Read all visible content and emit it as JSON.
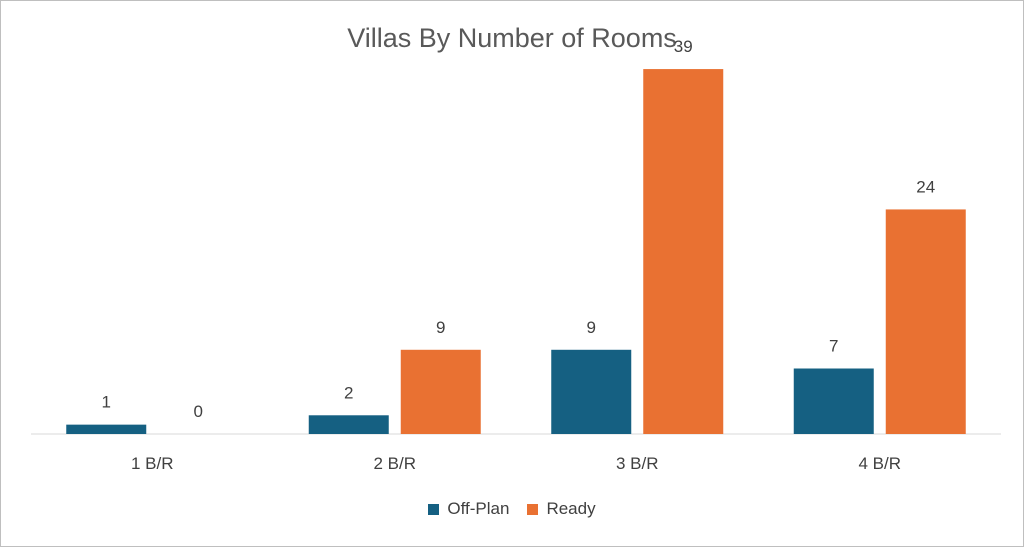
{
  "chart_data": {
    "type": "bar",
    "title": "Villas By Number of Rooms",
    "categories": [
      "1 B/R",
      "2 B/R",
      "3 B/R",
      "4 B/R"
    ],
    "series": [
      {
        "name": "Off-Plan",
        "values": [
          1,
          2,
          9,
          7
        ],
        "color": "#156082"
      },
      {
        "name": "Ready",
        "values": [
          0,
          9,
          39,
          24
        ],
        "color": "#E97132"
      }
    ],
    "ylim": [
      0,
      42
    ],
    "grid": false,
    "legend": "bottom",
    "data_labels": true
  }
}
